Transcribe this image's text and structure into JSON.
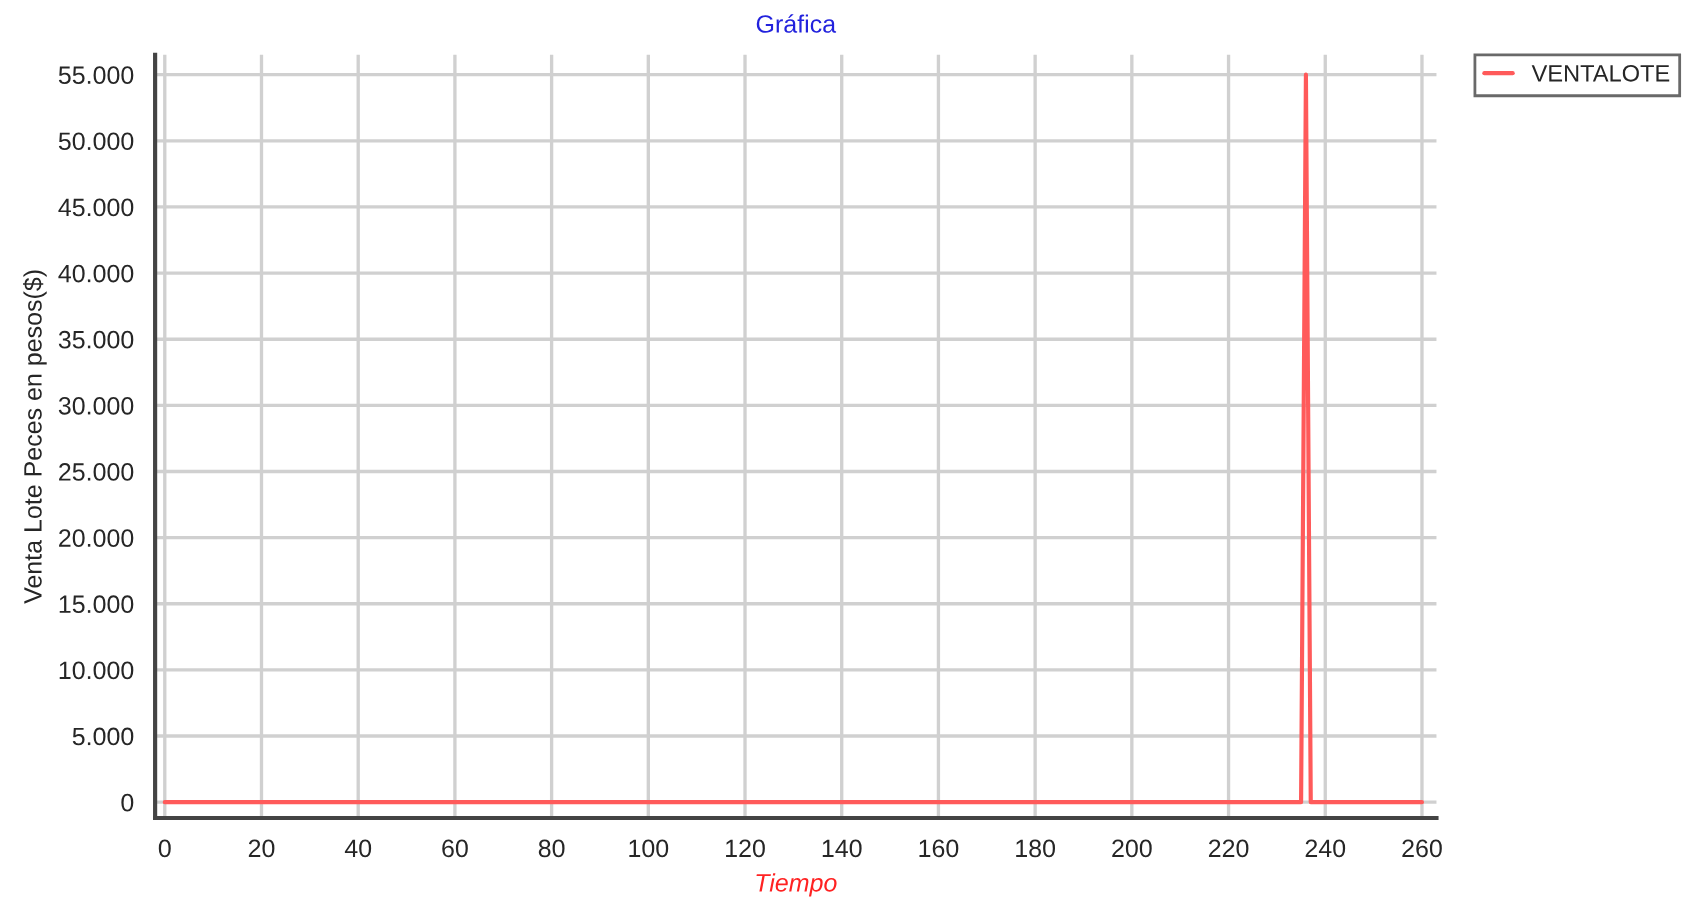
{
  "chart_data": {
    "type": "line",
    "title": "Gráfica",
    "xlabel": "Tiempo",
    "ylabel": "Venta Lote Peces en pesos($)",
    "series": [
      {
        "name": "VENTALOTE",
        "color": "#ff5a5a",
        "x": [
          0,
          235,
          236,
          237,
          260
        ],
        "values": [
          0,
          0,
          55000,
          0,
          0
        ]
      }
    ],
    "xlim": [
      -2,
      263
    ],
    "xticks": [
      0,
      20,
      40,
      60,
      80,
      100,
      120,
      140,
      160,
      180,
      200,
      220,
      240,
      260
    ],
    "ylim": [
      -1200,
      56500
    ],
    "yticks": [
      {
        "value": 0,
        "label": "0"
      },
      {
        "value": 5000,
        "label": "5.000"
      },
      {
        "value": 10000,
        "label": "10.000"
      },
      {
        "value": 15000,
        "label": "15.000"
      },
      {
        "value": 20000,
        "label": "20.000"
      },
      {
        "value": 25000,
        "label": "25.000"
      },
      {
        "value": 30000,
        "label": "30.000"
      },
      {
        "value": 35000,
        "label": "35.000"
      },
      {
        "value": 40000,
        "label": "40.000"
      },
      {
        "value": 45000,
        "label": "45.000"
      },
      {
        "value": 50000,
        "label": "50.000"
      },
      {
        "value": 55000,
        "label": "55.000"
      }
    ],
    "grid": true,
    "legend": "top right",
    "marker": "none",
    "line_style": "solid"
  }
}
